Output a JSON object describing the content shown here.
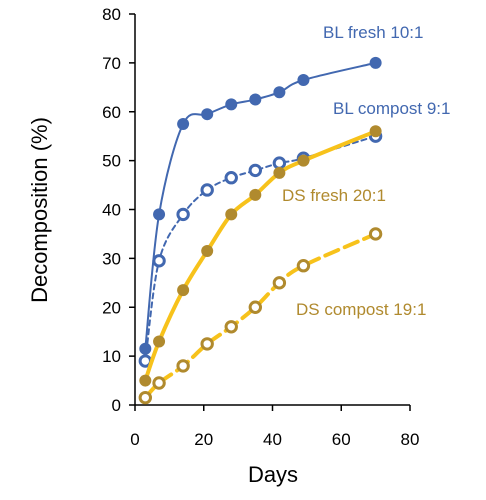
{
  "chart_data": {
    "type": "line",
    "xlabel": "Days",
    "ylabel": "Decomposition (%)",
    "xlim": [
      0,
      80
    ],
    "ylim": [
      0,
      80
    ],
    "xticks": [
      0,
      20,
      40,
      60,
      80
    ],
    "yticks": [
      0,
      10,
      20,
      30,
      40,
      50,
      60,
      70,
      80
    ],
    "grid": false,
    "legend": "inline labels",
    "series": [
      {
        "name": "BL fresh 10:1",
        "color": "#4268b0",
        "line_style": "solid",
        "marker": "filled-circle",
        "x": [
          3,
          7,
          14,
          21,
          28,
          35,
          42,
          49,
          70
        ],
        "y": [
          11.5,
          39,
          57.5,
          59.5,
          61.5,
          62.5,
          64,
          66.5,
          70
        ]
      },
      {
        "name": "BL compost 9:1",
        "color": "#4268b0",
        "line_style": "dashed",
        "marker": "open-circle",
        "x": [
          3,
          7,
          14,
          21,
          28,
          35,
          42,
          49,
          70
        ],
        "y": [
          9,
          29.5,
          39,
          44,
          46.5,
          48,
          49.5,
          50.5,
          55
        ]
      },
      {
        "name": "DS fresh 20:1",
        "color": "#b08a2e",
        "line_color": "#f7c21b",
        "line_style": "solid",
        "marker": "filled-circle",
        "x": [
          3,
          7,
          14,
          21,
          28,
          35,
          42,
          49,
          70
        ],
        "y": [
          5,
          13,
          23.5,
          31.5,
          39,
          43,
          47.5,
          50,
          56
        ]
      },
      {
        "name": "DS compost 19:1",
        "color": "#b08a2e",
        "line_color": "#f7c21b",
        "line_style": "dashed",
        "marker": "open-circle",
        "x": [
          3,
          7,
          14,
          21,
          28,
          35,
          42,
          49,
          70
        ],
        "y": [
          1.5,
          4.5,
          8,
          12.5,
          16,
          20,
          25,
          28.5,
          35
        ]
      }
    ]
  }
}
